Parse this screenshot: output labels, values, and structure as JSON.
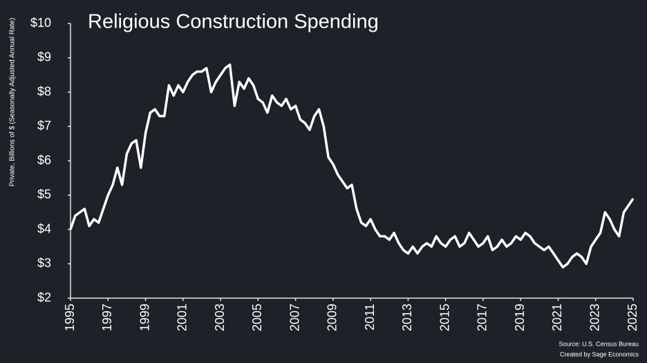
{
  "chart_data": {
    "type": "line",
    "title": "Religious Construction Spending",
    "y_label": "Private, Billions of $ (Seasonally Adjusted Annual Rate)",
    "source": "Source: U.S. Census Bureau",
    "credit": "Created by Sage Economics",
    "x": [
      1995,
      1995.25,
      1995.5,
      1995.75,
      1996,
      1996.25,
      1996.5,
      1996.75,
      1997,
      1997.25,
      1997.5,
      1997.75,
      1998,
      1998.25,
      1998.5,
      1998.75,
      1999,
      1999.25,
      1999.5,
      1999.75,
      2000,
      2000.25,
      2000.5,
      2000.75,
      2001,
      2001.25,
      2001.5,
      2001.75,
      2002,
      2002.25,
      2002.5,
      2002.75,
      2003,
      2003.25,
      2003.5,
      2003.75,
      2004,
      2004.25,
      2004.5,
      2004.75,
      2005,
      2005.25,
      2005.5,
      2005.75,
      2006,
      2006.25,
      2006.5,
      2006.75,
      2007,
      2007.25,
      2007.5,
      2007.75,
      2008,
      2008.25,
      2008.5,
      2008.75,
      2009,
      2009.25,
      2009.5,
      2009.75,
      2010,
      2010.25,
      2010.5,
      2010.75,
      2011,
      2011.25,
      2011.5,
      2011.75,
      2012,
      2012.25,
      2012.5,
      2012.75,
      2013,
      2013.25,
      2013.5,
      2013.75,
      2014,
      2014.25,
      2014.5,
      2014.75,
      2015,
      2015.25,
      2015.5,
      2015.75,
      2016,
      2016.25,
      2016.5,
      2016.75,
      2017,
      2017.25,
      2017.5,
      2017.75,
      2018,
      2018.25,
      2018.5,
      2018.75,
      2019,
      2019.25,
      2019.5,
      2019.75,
      2020,
      2020.25,
      2020.5,
      2020.75,
      2021,
      2021.25,
      2021.5,
      2021.75,
      2022,
      2022.25,
      2022.5,
      2022.75,
      2023,
      2023.25,
      2023.5,
      2023.75,
      2024,
      2024.25,
      2024.5,
      2024.75,
      2025
    ],
    "series": [
      {
        "name": "Religious",
        "color": "#ffffff",
        "values": [
          4.0,
          4.4,
          4.5,
          4.6,
          4.1,
          4.3,
          4.2,
          4.6,
          5.0,
          5.3,
          5.8,
          5.3,
          6.2,
          6.5,
          6.6,
          5.8,
          6.8,
          7.4,
          7.5,
          7.3,
          7.3,
          8.2,
          7.9,
          8.2,
          8.0,
          8.3,
          8.5,
          8.6,
          8.6,
          8.7,
          8.0,
          8.3,
          8.5,
          8.7,
          8.8,
          7.6,
          8.3,
          8.1,
          8.4,
          8.2,
          7.8,
          7.7,
          7.4,
          7.9,
          7.7,
          7.6,
          7.8,
          7.5,
          7.6,
          7.2,
          7.1,
          6.9,
          7.3,
          7.5,
          7.0,
          6.1,
          5.9,
          5.6,
          5.4,
          5.2,
          5.3,
          4.6,
          4.2,
          4.1,
          4.3,
          4.0,
          3.8,
          3.8,
          3.7,
          3.9,
          3.6,
          3.4,
          3.3,
          3.5,
          3.3,
          3.5,
          3.6,
          3.5,
          3.8,
          3.6,
          3.5,
          3.7,
          3.8,
          3.5,
          3.6,
          3.9,
          3.7,
          3.5,
          3.6,
          3.8,
          3.4,
          3.5,
          3.7,
          3.5,
          3.6,
          3.8,
          3.7,
          3.9,
          3.8,
          3.6,
          3.5,
          3.4,
          3.5,
          3.3,
          3.1,
          2.9,
          3.0,
          3.2,
          3.3,
          3.2,
          3.0,
          3.5,
          3.7,
          3.9,
          4.5,
          4.3,
          4.0,
          3.8,
          4.5,
          4.7,
          4.9
        ]
      }
    ],
    "xlim": [
      1995,
      2025
    ],
    "xticks": [
      1995,
      1997,
      1999,
      2001,
      2003,
      2005,
      2007,
      2009,
      2011,
      2013,
      2015,
      2017,
      2019,
      2021,
      2023,
      2025
    ],
    "ylim": [
      2,
      10
    ],
    "yticks": [
      {
        "value": 2,
        "label": "$2"
      },
      {
        "value": 3,
        "label": "$3"
      },
      {
        "value": 4,
        "label": "$4"
      },
      {
        "value": 5,
        "label": "$5"
      },
      {
        "value": 6,
        "label": "$6"
      },
      {
        "value": 7,
        "label": "$7"
      },
      {
        "value": 8,
        "label": "$8"
      },
      {
        "value": 9,
        "label": "$9"
      },
      {
        "value": 10,
        "label": "$10"
      }
    ],
    "grid": false
  }
}
